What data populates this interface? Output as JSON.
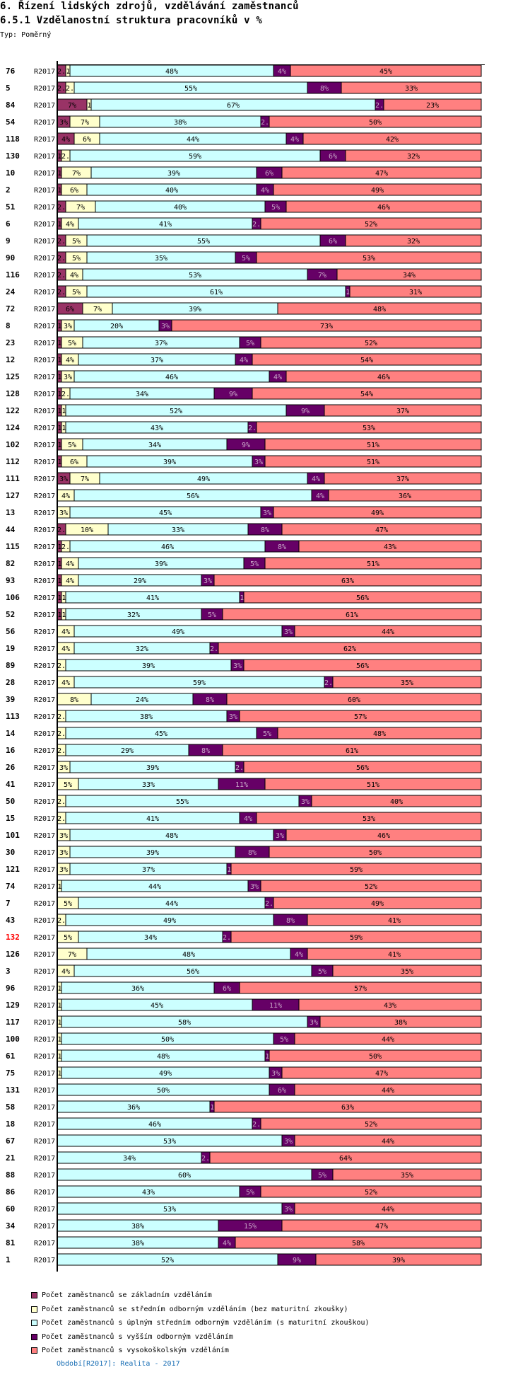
{
  "header": {
    "title": "6. Řízení lidských zdrojů, vzdělávání zaměstnanců",
    "subtitle": "6.5.1 Vzdělanostní struktura pracovníků v %",
    "type_label": "Typ: Poměrný"
  },
  "footer": {
    "period_text": "Období[R2017]: Realita - 2017"
  },
  "chart_data": {
    "type": "bar",
    "orientation": "horizontal",
    "stacked": true,
    "normalized_percent": true,
    "title": "6.5.1 Vzdělanostní struktura pracovníků v %",
    "xlabel": "",
    "ylabel": "",
    "xlim": [
      0,
      100
    ],
    "grid": false,
    "legend_position": "bottom",
    "highlight_color": "#ff0000",
    "series": [
      {
        "name": "Počet zaměstnanců se základním vzděláním",
        "color": "#993366"
      },
      {
        "name": "Počet zaměstnanců se středním odborným vzděláním (bez maturitní zkoušky)",
        "color": "#FFFFCC"
      },
      {
        "name": "Počet zaměstnanců s úplným středním odborným vzděláním (s maturitní zkouškou)",
        "color": "#CCFFFF"
      },
      {
        "name": "Počet zaměstnanců s vyšším odborným vzděláním",
        "color": "#660066"
      },
      {
        "name": "Počet zaměstnanců s vysokoškolským vzděláním",
        "color": "#FF8080"
      }
    ],
    "rows": [
      {
        "id": "76",
        "period": "R2017",
        "values": [
          2,
          1,
          48,
          4,
          45
        ]
      },
      {
        "id": "5",
        "period": "R2017",
        "values": [
          2,
          2,
          55,
          8,
          33
        ]
      },
      {
        "id": "84",
        "period": "R2017",
        "values": [
          7,
          1,
          67,
          2,
          23
        ]
      },
      {
        "id": "54",
        "period": "R2017",
        "values": [
          3,
          7,
          38,
          2,
          50
        ]
      },
      {
        "id": "118",
        "period": "R2017",
        "values": [
          4,
          6,
          44,
          4,
          42
        ]
      },
      {
        "id": "130",
        "period": "R2017",
        "values": [
          1,
          2,
          59,
          6,
          32
        ]
      },
      {
        "id": "10",
        "period": "R2017",
        "values": [
          1,
          7,
          39,
          6,
          47
        ]
      },
      {
        "id": "2",
        "period": "R2017",
        "values": [
          1,
          6,
          40,
          4,
          49
        ]
      },
      {
        "id": "51",
        "period": "R2017",
        "values": [
          2,
          7,
          40,
          5,
          46
        ]
      },
      {
        "id": "6",
        "period": "R2017",
        "values": [
          1,
          4,
          41,
          2,
          52
        ]
      },
      {
        "id": "9",
        "period": "R2017",
        "values": [
          2,
          5,
          55,
          6,
          32
        ]
      },
      {
        "id": "90",
        "period": "R2017",
        "values": [
          2,
          5,
          35,
          5,
          53
        ]
      },
      {
        "id": "116",
        "period": "R2017",
        "values": [
          2,
          4,
          53,
          7,
          34
        ]
      },
      {
        "id": "24",
        "period": "R2017",
        "values": [
          2,
          5,
          61,
          1,
          31
        ]
      },
      {
        "id": "72",
        "period": "R2017",
        "values": [
          6,
          7,
          39,
          0,
          48
        ]
      },
      {
        "id": "8",
        "period": "R2017",
        "values": [
          1,
          3,
          20,
          3,
          73
        ]
      },
      {
        "id": "23",
        "period": "R2017",
        "values": [
          1,
          5,
          37,
          5,
          52
        ]
      },
      {
        "id": "12",
        "period": "R2017",
        "values": [
          1,
          4,
          37,
          4,
          54
        ]
      },
      {
        "id": "125",
        "period": "R2017",
        "values": [
          1,
          3,
          46,
          4,
          46
        ]
      },
      {
        "id": "128",
        "period": "R2017",
        "values": [
          1,
          2,
          34,
          9,
          54
        ]
      },
      {
        "id": "122",
        "period": "R2017",
        "values": [
          1,
          1,
          52,
          9,
          37
        ]
      },
      {
        "id": "124",
        "period": "R2017",
        "values": [
          1,
          1,
          43,
          2,
          53
        ]
      },
      {
        "id": "102",
        "period": "R2017",
        "values": [
          1,
          5,
          34,
          9,
          51
        ]
      },
      {
        "id": "112",
        "period": "R2017",
        "values": [
          1,
          6,
          39,
          3,
          51
        ]
      },
      {
        "id": "111",
        "period": "R2017",
        "values": [
          3,
          7,
          49,
          4,
          37
        ]
      },
      {
        "id": "127",
        "period": "R2017",
        "values": [
          0,
          4,
          56,
          4,
          36
        ]
      },
      {
        "id": "13",
        "period": "R2017",
        "values": [
          0,
          3,
          45,
          3,
          49
        ]
      },
      {
        "id": "44",
        "period": "R2017",
        "values": [
          2,
          10,
          33,
          8,
          47
        ]
      },
      {
        "id": "115",
        "period": "R2017",
        "values": [
          1,
          2,
          46,
          8,
          43
        ]
      },
      {
        "id": "82",
        "period": "R2017",
        "values": [
          1,
          4,
          39,
          5,
          51
        ]
      },
      {
        "id": "93",
        "period": "R2017",
        "values": [
          1,
          4,
          29,
          3,
          63
        ]
      },
      {
        "id": "106",
        "period": "R2017",
        "values": [
          1,
          1,
          41,
          1,
          56
        ]
      },
      {
        "id": "52",
        "period": "R2017",
        "values": [
          1,
          1,
          32,
          5,
          61
        ]
      },
      {
        "id": "56",
        "period": "R2017",
        "values": [
          0,
          4,
          49,
          3,
          44
        ]
      },
      {
        "id": "19",
        "period": "R2017",
        "values": [
          0,
          4,
          32,
          2,
          62
        ]
      },
      {
        "id": "89",
        "period": "R2017",
        "values": [
          0,
          2,
          39,
          3,
          56
        ]
      },
      {
        "id": "28",
        "period": "R2017",
        "values": [
          0,
          4,
          59,
          2,
          35
        ]
      },
      {
        "id": "39",
        "period": "R2017",
        "values": [
          0,
          8,
          24,
          8,
          60
        ]
      },
      {
        "id": "113",
        "period": "R2017",
        "values": [
          0,
          2,
          38,
          3,
          57
        ]
      },
      {
        "id": "14",
        "period": "R2017",
        "values": [
          0,
          2,
          45,
          5,
          48
        ]
      },
      {
        "id": "16",
        "period": "R2017",
        "values": [
          0,
          2,
          29,
          8,
          61
        ]
      },
      {
        "id": "26",
        "period": "R2017",
        "values": [
          0,
          3,
          39,
          2,
          56
        ]
      },
      {
        "id": "41",
        "period": "R2017",
        "values": [
          0,
          5,
          33,
          11,
          51
        ]
      },
      {
        "id": "50",
        "period": "R2017",
        "values": [
          0,
          2,
          55,
          3,
          40
        ]
      },
      {
        "id": "15",
        "period": "R2017",
        "values": [
          0,
          2,
          41,
          4,
          53
        ]
      },
      {
        "id": "101",
        "period": "R2017",
        "values": [
          0,
          3,
          48,
          3,
          46
        ]
      },
      {
        "id": "30",
        "period": "R2017",
        "values": [
          0,
          3,
          39,
          8,
          50
        ]
      },
      {
        "id": "121",
        "period": "R2017",
        "values": [
          0,
          3,
          37,
          1,
          59
        ]
      },
      {
        "id": "74",
        "period": "R2017",
        "values": [
          0,
          1,
          44,
          3,
          52
        ]
      },
      {
        "id": "7",
        "period": "R2017",
        "values": [
          0,
          5,
          44,
          2,
          49
        ]
      },
      {
        "id": "43",
        "period": "R2017",
        "values": [
          0,
          2,
          49,
          8,
          41
        ]
      },
      {
        "id": "132",
        "period": "R2017",
        "values": [
          0,
          5,
          34,
          2,
          59
        ],
        "highlighted": true
      },
      {
        "id": "126",
        "period": "R2017",
        "values": [
          0,
          7,
          48,
          4,
          41
        ]
      },
      {
        "id": "3",
        "period": "R2017",
        "values": [
          0,
          4,
          56,
          5,
          35
        ]
      },
      {
        "id": "96",
        "period": "R2017",
        "values": [
          0,
          1,
          36,
          6,
          57
        ]
      },
      {
        "id": "129",
        "period": "R2017",
        "values": [
          0,
          1,
          45,
          11,
          43
        ]
      },
      {
        "id": "117",
        "period": "R2017",
        "values": [
          0,
          1,
          58,
          3,
          38
        ]
      },
      {
        "id": "100",
        "period": "R2017",
        "values": [
          0,
          1,
          50,
          5,
          44
        ]
      },
      {
        "id": "61",
        "period": "R2017",
        "values": [
          0,
          1,
          48,
          1,
          50
        ]
      },
      {
        "id": "75",
        "period": "R2017",
        "values": [
          0,
          1,
          49,
          3,
          47
        ]
      },
      {
        "id": "131",
        "period": "R2017",
        "values": [
          0,
          0,
          50,
          6,
          44
        ]
      },
      {
        "id": "58",
        "period": "R2017",
        "values": [
          0,
          0,
          36,
          1,
          63
        ]
      },
      {
        "id": "18",
        "period": "R2017",
        "values": [
          0,
          0,
          46,
          2,
          52
        ]
      },
      {
        "id": "67",
        "period": "R2017",
        "values": [
          0,
          0,
          53,
          3,
          44
        ]
      },
      {
        "id": "21",
        "period": "R2017",
        "values": [
          0,
          0,
          34,
          2,
          64
        ]
      },
      {
        "id": "88",
        "period": "R2017",
        "values": [
          0,
          0,
          60,
          5,
          35
        ]
      },
      {
        "id": "86",
        "period": "R2017",
        "values": [
          0,
          0,
          43,
          5,
          52
        ]
      },
      {
        "id": "60",
        "period": "R2017",
        "values": [
          0,
          0,
          53,
          3,
          44
        ]
      },
      {
        "id": "34",
        "period": "R2017",
        "values": [
          0,
          0,
          38,
          15,
          47
        ]
      },
      {
        "id": "81",
        "period": "R2017",
        "values": [
          0,
          0,
          38,
          4,
          58
        ]
      },
      {
        "id": "1",
        "period": "R2017",
        "values": [
          0,
          0,
          52,
          9,
          39
        ]
      }
    ]
  }
}
